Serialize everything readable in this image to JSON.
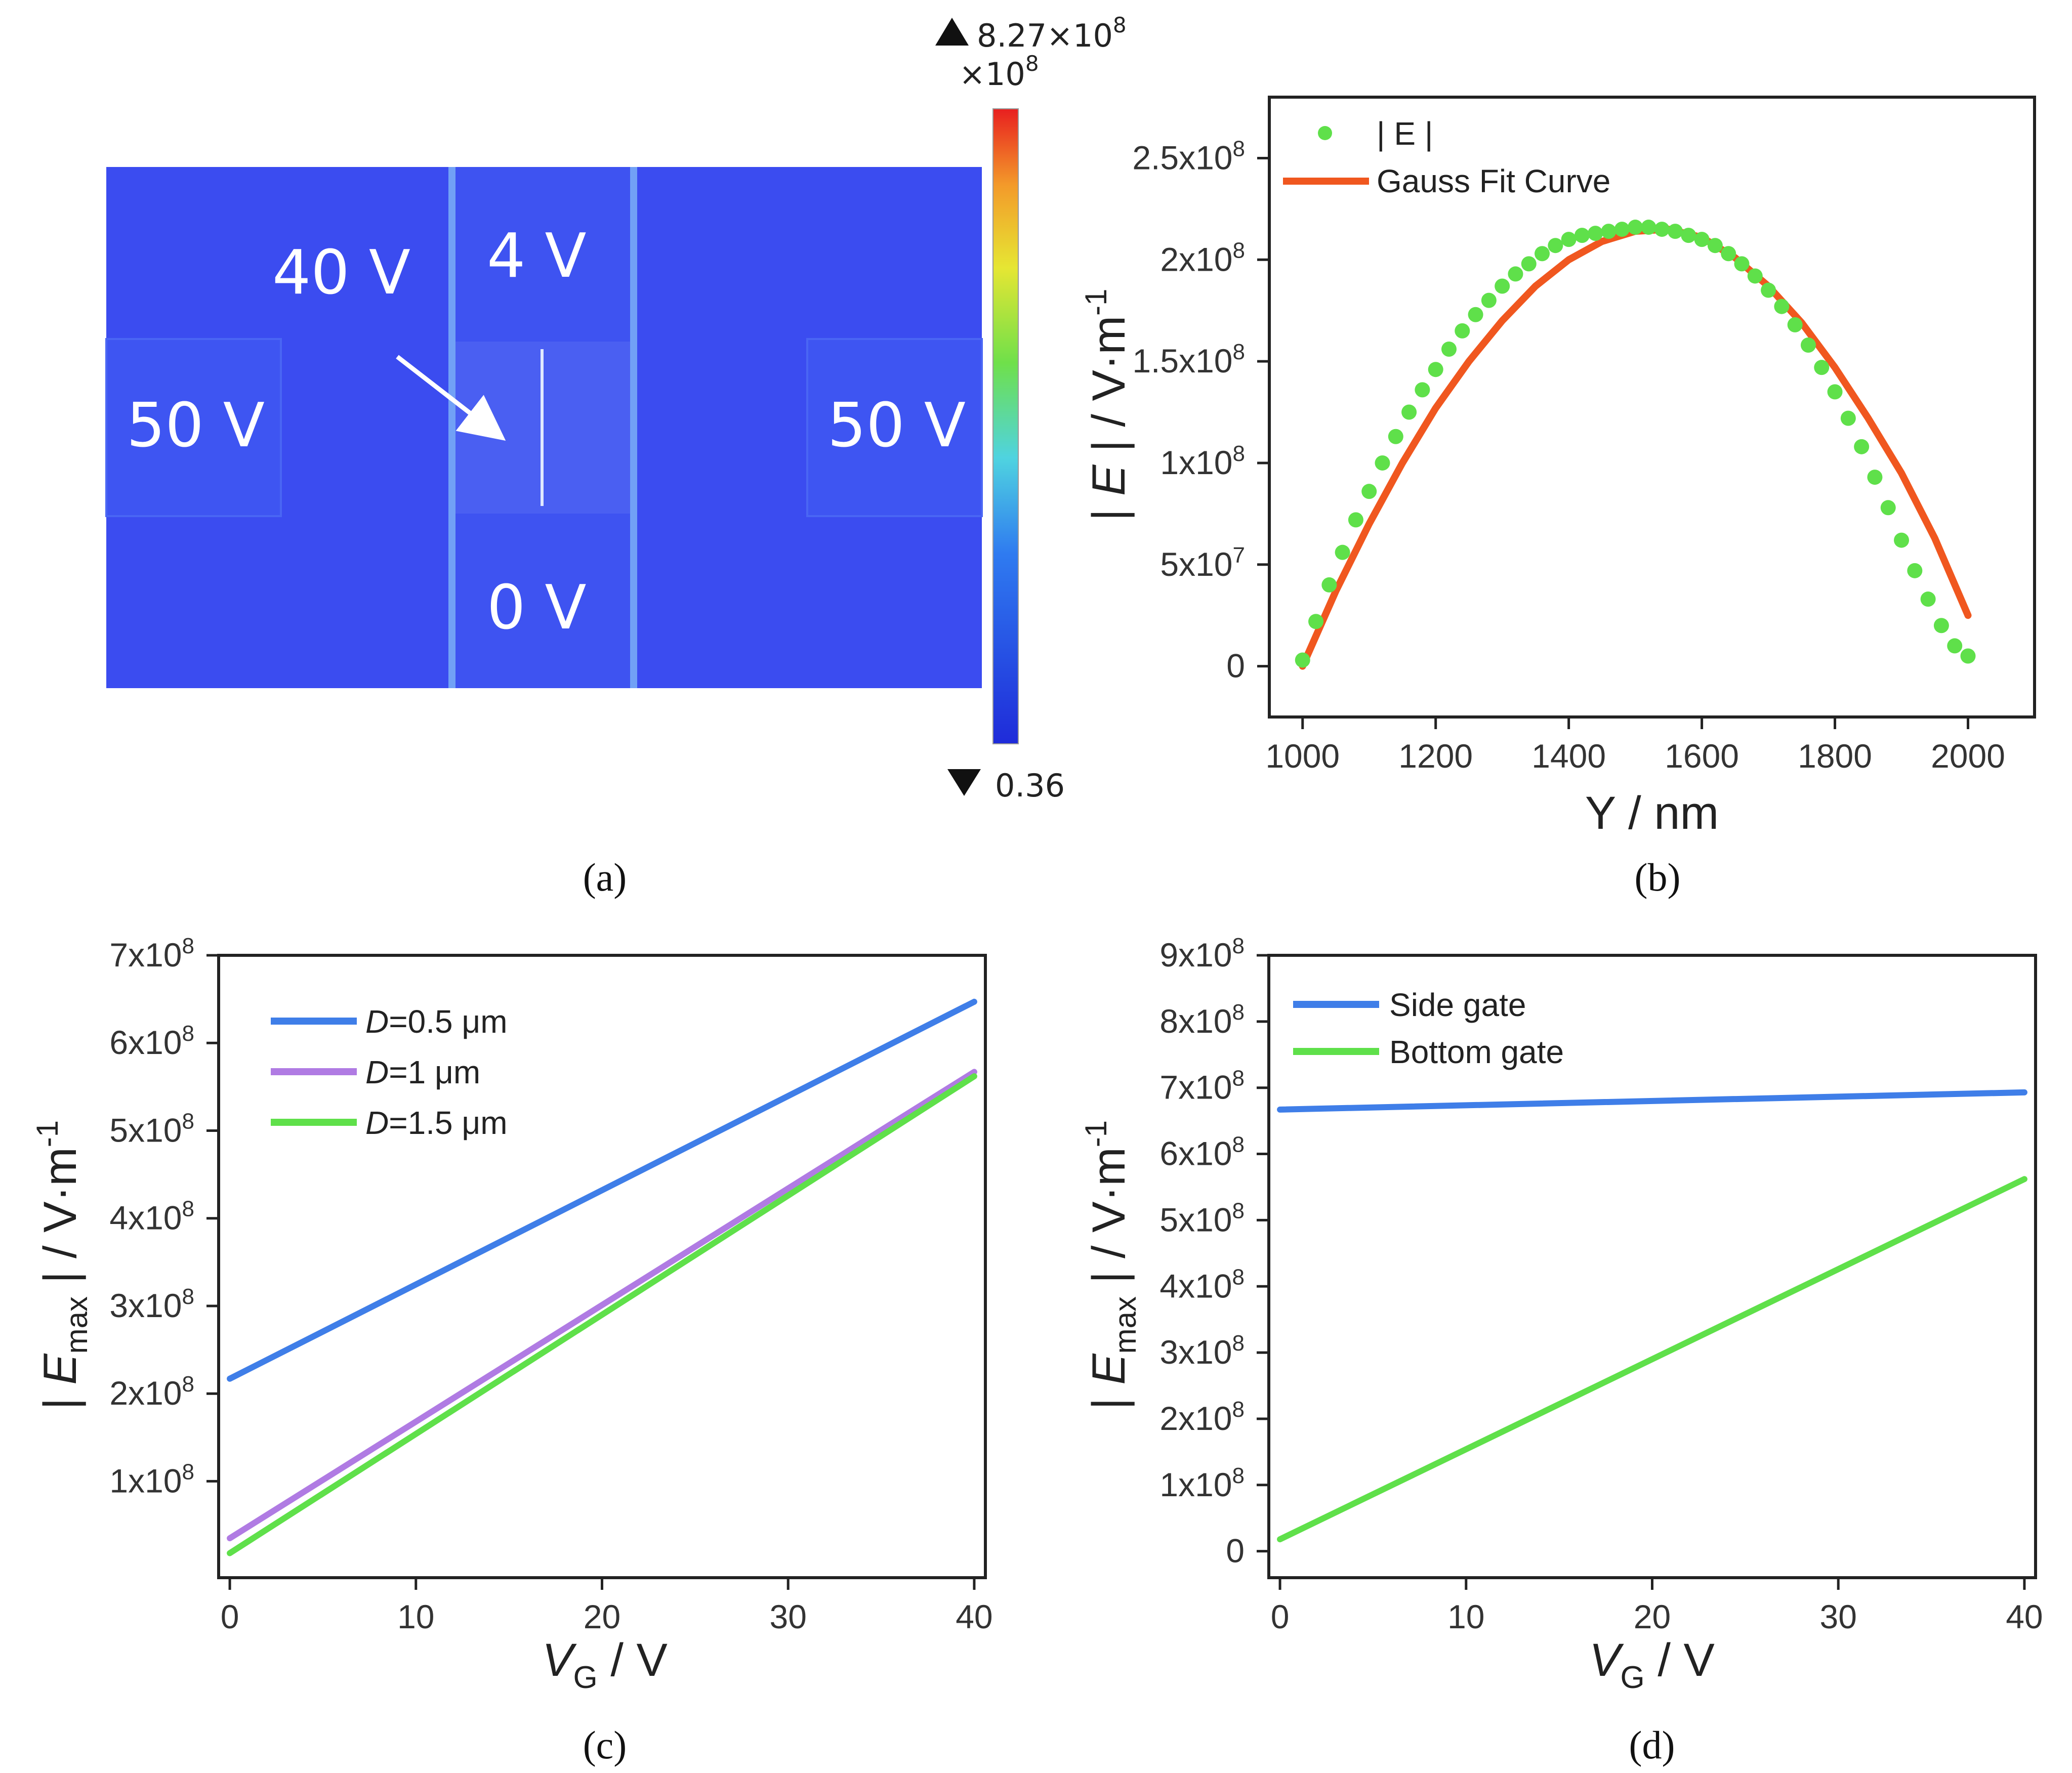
{
  "chart_data": [
    {
      "type": "heatmap",
      "panel": "(a)",
      "labels": {
        "left": "50 V",
        "right": "50 V",
        "top_gate": "4 V",
        "bottom_gate": "0 V",
        "side_gate": "40 V"
      },
      "colorbar": {
        "max": "8.27×10",
        "max_exp": "8",
        "multiplier": "×10",
        "multiplier_exp": "8",
        "min": "0.36"
      },
      "colors": {
        "field": "#3b4cf0",
        "colormap": [
          "#1f2bd9",
          "#2f7bf0",
          "#4fd3e0",
          "#6fe04a",
          "#e6e633",
          "#f39a2a",
          "#e81f1f"
        ]
      }
    },
    {
      "type": "scatter",
      "panel": "(b)",
      "xlabel": "Y / nm",
      "ylabel": [
        "| ",
        "E",
        " | / V·m",
        "-1"
      ],
      "xlim": [
        950,
        2100
      ],
      "ylim": [
        -25000000,
        280000000
      ],
      "xticks": [
        1000,
        1200,
        1400,
        1600,
        1800,
        2000
      ],
      "yticks": [
        {
          "v": 0,
          "m": "0",
          "e": ""
        },
        {
          "v": 50000000,
          "m": "5x10",
          "e": "7"
        },
        {
          "v": 100000000,
          "m": "1x10",
          "e": "8"
        },
        {
          "v": 150000000,
          "m": "1.5x10",
          "e": "8"
        },
        {
          "v": 200000000,
          "m": "2x10",
          "e": "8"
        },
        {
          "v": 250000000,
          "m": "2.5x10",
          "e": "8"
        }
      ],
      "series": [
        {
          "name": "| E |",
          "kind": "scatter",
          "color": "#5fe04a",
          "x": [
            1000,
            1020,
            1040,
            1060,
            1080,
            1100,
            1120,
            1140,
            1160,
            1180,
            1200,
            1220,
            1240,
            1260,
            1280,
            1300,
            1320,
            1340,
            1360,
            1380,
            1400,
            1420,
            1440,
            1460,
            1480,
            1500,
            1520,
            1540,
            1560,
            1580,
            1600,
            1620,
            1640,
            1660,
            1680,
            1700,
            1720,
            1740,
            1760,
            1780,
            1800,
            1820,
            1840,
            1860,
            1880,
            1900,
            1920,
            1940,
            1960,
            1980,
            2000
          ],
          "y": [
            3000000,
            22000000,
            40000000,
            56000000,
            72000000,
            86000000,
            100000000,
            113000000,
            125000000,
            136000000,
            146000000,
            156000000,
            165000000,
            173000000,
            180000000,
            187000000,
            193000000,
            198000000,
            203000000,
            207000000,
            210000000,
            212000000,
            213000000,
            214000000,
            215000000,
            216000000,
            216000000,
            215000000,
            214000000,
            212000000,
            210000000,
            207000000,
            203000000,
            198000000,
            192000000,
            185000000,
            177000000,
            168000000,
            158000000,
            147000000,
            135000000,
            122000000,
            108000000,
            93000000,
            78000000,
            62000000,
            47000000,
            33000000,
            20000000,
            10000000,
            5000000
          ]
        },
        {
          "name": "Gauss Fit Curve",
          "kind": "line",
          "color": "#f0571f",
          "x": [
            1000,
            1050,
            1100,
            1150,
            1200,
            1250,
            1300,
            1350,
            1400,
            1450,
            1500,
            1550,
            1600,
            1650,
            1700,
            1750,
            1800,
            1850,
            1900,
            1950,
            2000
          ],
          "y": [
            0,
            37000000,
            70000000,
            100000000,
            127000000,
            150000000,
            170000000,
            187000000,
            200000000,
            209000000,
            214000000,
            215000000,
            211000000,
            201000000,
            187000000,
            169000000,
            147000000,
            122000000,
            95000000,
            63000000,
            25000000
          ]
        }
      ]
    },
    {
      "type": "line",
      "panel": "(c)",
      "xlabel": [
        "V",
        "G",
        " / V"
      ],
      "ylabel": [
        "| ",
        "E",
        "max",
        " | / V·m",
        "-1"
      ],
      "xlim": [
        -0.6,
        40.6
      ],
      "ylim": [
        -10000000,
        700000000
      ],
      "xticks": [
        0,
        10,
        20,
        30,
        40
      ],
      "yticks": [
        {
          "v": 100000000,
          "m": "1x10",
          "e": "8"
        },
        {
          "v": 200000000,
          "m": "2x10",
          "e": "8"
        },
        {
          "v": 300000000,
          "m": "3x10",
          "e": "8"
        },
        {
          "v": 400000000,
          "m": "4x10",
          "e": "8"
        },
        {
          "v": 500000000,
          "m": "5x10",
          "e": "8"
        },
        {
          "v": 600000000,
          "m": "6x10",
          "e": "8"
        },
        {
          "v": 700000000,
          "m": "7x10",
          "e": "8"
        }
      ],
      "series": [
        {
          "name": "D=0.5 μm",
          "d": "D",
          "rest": "=0.5 μm",
          "color": "#3f7ee8",
          "x": [
            0,
            40
          ],
          "y": [
            217000000,
            647000000
          ]
        },
        {
          "name": "D=1 μm",
          "d": "D",
          "rest": "=1 μm",
          "color": "#b07be3",
          "x": [
            0,
            40
          ],
          "y": [
            35000000,
            567000000
          ]
        },
        {
          "name": "D=1.5 μm",
          "d": "D",
          "rest": "=1.5 μm",
          "color": "#5fe04a",
          "x": [
            0,
            40
          ],
          "y": [
            18000000,
            562000000
          ]
        }
      ]
    },
    {
      "type": "line",
      "panel": "(d)",
      "xlabel": [
        "V",
        "G",
        " / V"
      ],
      "ylabel": [
        "| ",
        "E",
        "max",
        " | / V·m",
        "-1"
      ],
      "xlim": [
        -0.6,
        40.6
      ],
      "ylim": [
        -40000000,
        900000000
      ],
      "xticks": [
        0,
        10,
        20,
        30,
        40
      ],
      "yticks": [
        {
          "v": 0,
          "m": "0",
          "e": ""
        },
        {
          "v": 100000000,
          "m": "1x10",
          "e": "8"
        },
        {
          "v": 200000000,
          "m": "2x10",
          "e": "8"
        },
        {
          "v": 300000000,
          "m": "3x10",
          "e": "8"
        },
        {
          "v": 400000000,
          "m": "4x10",
          "e": "8"
        },
        {
          "v": 500000000,
          "m": "5x10",
          "e": "8"
        },
        {
          "v": 600000000,
          "m": "6x10",
          "e": "8"
        },
        {
          "v": 700000000,
          "m": "7x10",
          "e": "8"
        },
        {
          "v": 800000000,
          "m": "8x10",
          "e": "8"
        },
        {
          "v": 900000000,
          "m": "9x10",
          "e": "8"
        }
      ],
      "series": [
        {
          "name": "Side gate",
          "color": "#3f7ee8",
          "x": [
            0,
            40
          ],
          "y": [
            667000000,
            693000000
          ]
        },
        {
          "name": "Bottom gate",
          "color": "#5fe04a",
          "x": [
            0,
            40
          ],
          "y": [
            18000000,
            562000000
          ]
        }
      ]
    }
  ]
}
